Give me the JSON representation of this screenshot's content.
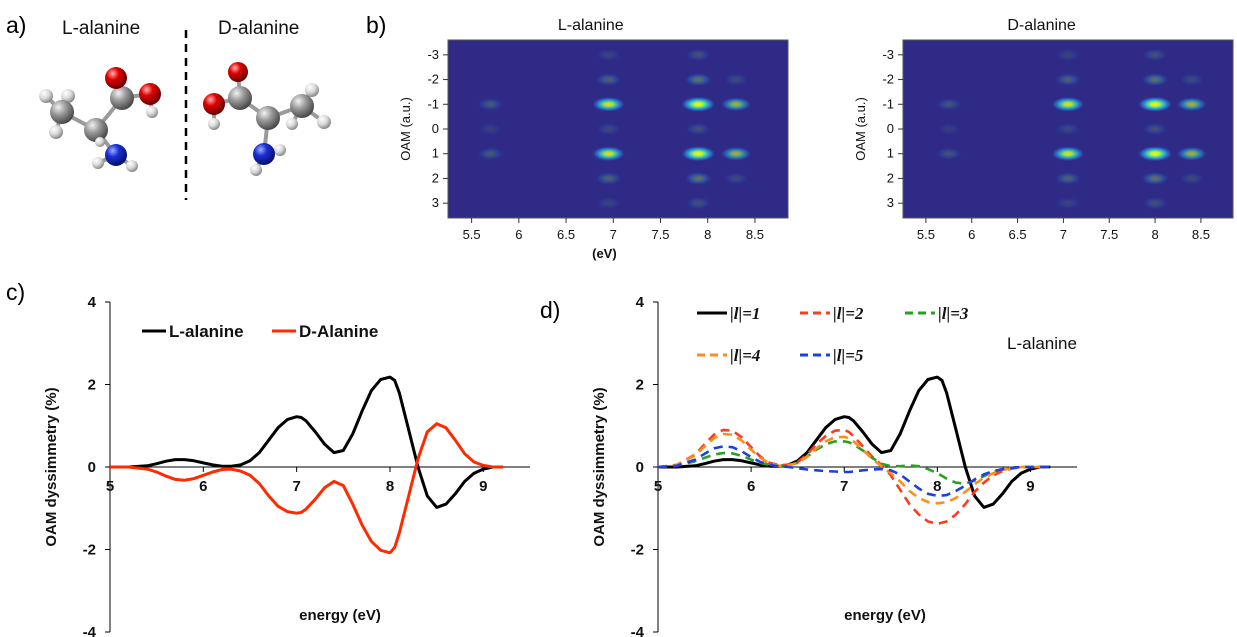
{
  "panel_labels": {
    "a": "a)",
    "b": "b)",
    "c": "c)",
    "d": "d)"
  },
  "molecules": {
    "left_title": "L-alanine",
    "right_title": "D-alanine"
  },
  "colors": {
    "carbon": "#8a8a8a",
    "oxygen": "#e00000",
    "nitrogen": "#1a2fd6",
    "hydrogen": "#e6e6e6",
    "heatmap_bg": "#2e2a86",
    "l_alanine": "#000000",
    "d_alanine": "#ff2a00",
    "l2": "#ff3b1f",
    "l3": "#2aa020",
    "l4": "#ff8c1a",
    "l5": "#1f3fe6"
  },
  "chart_data": [
    {
      "type": "heatmap",
      "title": "L-alanine",
      "xlabel": "(eV)",
      "ylabel": "OAM (a.u.)",
      "x_ticks": [
        "5.5",
        "6",
        "6.5",
        "7",
        "7.5",
        "8",
        "8.5"
      ],
      "x_tick_values": [
        5.5,
        6,
        6.5,
        7,
        7.5,
        8,
        8.5
      ],
      "y_ticks": [
        "-3",
        "-2",
        "-1",
        "0",
        "1",
        "2",
        "3"
      ],
      "y_tick_values": [
        -3,
        -2,
        -1,
        0,
        1,
        2,
        3
      ],
      "xlim": [
        5.25,
        8.85
      ],
      "ylim": [
        -3.6,
        3.6
      ],
      "blobs": [
        {
          "x": 5.7,
          "y": -1,
          "i": 0.18
        },
        {
          "x": 5.7,
          "y": 1,
          "i": 0.18
        },
        {
          "x": 5.7,
          "y": 0,
          "i": 0.08
        },
        {
          "x": 6.95,
          "y": -1,
          "i": 0.85
        },
        {
          "x": 6.95,
          "y": 1,
          "i": 0.85
        },
        {
          "x": 6.95,
          "y": -2,
          "i": 0.22
        },
        {
          "x": 6.95,
          "y": 2,
          "i": 0.22
        },
        {
          "x": 6.95,
          "y": -3,
          "i": 0.1
        },
        {
          "x": 6.95,
          "y": 3,
          "i": 0.1
        },
        {
          "x": 6.95,
          "y": 0,
          "i": 0.12
        },
        {
          "x": 7.9,
          "y": -1,
          "i": 1.0
        },
        {
          "x": 7.9,
          "y": 1,
          "i": 1.0
        },
        {
          "x": 8.3,
          "y": -1,
          "i": 0.6
        },
        {
          "x": 8.3,
          "y": 1,
          "i": 0.6
        },
        {
          "x": 7.9,
          "y": -2,
          "i": 0.3
        },
        {
          "x": 7.9,
          "y": 2,
          "i": 0.3
        },
        {
          "x": 7.9,
          "y": -3,
          "i": 0.15
        },
        {
          "x": 7.9,
          "y": 3,
          "i": 0.15
        },
        {
          "x": 7.9,
          "y": 0,
          "i": 0.15
        },
        {
          "x": 8.3,
          "y": -2,
          "i": 0.12
        },
        {
          "x": 8.3,
          "y": 2,
          "i": 0.12
        }
      ]
    },
    {
      "type": "heatmap",
      "title": "D-alanine",
      "xlabel": "",
      "ylabel": "OAM (a.u.)",
      "x_ticks": [
        "5.5",
        "6",
        "6.5",
        "7",
        "7.5",
        "8",
        "8.5"
      ],
      "x_tick_values": [
        5.5,
        6,
        6.5,
        7,
        7.5,
        8,
        8.5
      ],
      "y_ticks": [
        "-3",
        "-2",
        "-1",
        "0",
        "1",
        "2",
        "3"
      ],
      "y_tick_values": [
        -3,
        -2,
        -1,
        0,
        1,
        2,
        3
      ],
      "xlim": [
        5.25,
        8.85
      ],
      "ylim": [
        -3.6,
        3.6
      ],
      "blobs": [
        {
          "x": 5.75,
          "y": -1,
          "i": 0.16
        },
        {
          "x": 5.75,
          "y": 1,
          "i": 0.16
        },
        {
          "x": 5.75,
          "y": 0,
          "i": 0.07
        },
        {
          "x": 7.05,
          "y": -1,
          "i": 0.85
        },
        {
          "x": 7.05,
          "y": 1,
          "i": 0.85
        },
        {
          "x": 7.05,
          "y": -2,
          "i": 0.22
        },
        {
          "x": 7.05,
          "y": 2,
          "i": 0.22
        },
        {
          "x": 7.05,
          "y": -3,
          "i": 0.1
        },
        {
          "x": 7.05,
          "y": 3,
          "i": 0.1
        },
        {
          "x": 7.05,
          "y": 0,
          "i": 0.12
        },
        {
          "x": 8.0,
          "y": -1,
          "i": 1.0
        },
        {
          "x": 8.0,
          "y": 1,
          "i": 1.0
        },
        {
          "x": 8.4,
          "y": -1,
          "i": 0.6
        },
        {
          "x": 8.4,
          "y": 1,
          "i": 0.6
        },
        {
          "x": 8.0,
          "y": -2,
          "i": 0.3
        },
        {
          "x": 8.0,
          "y": 2,
          "i": 0.3
        },
        {
          "x": 8.0,
          "y": -3,
          "i": 0.15
        },
        {
          "x": 8.0,
          "y": 3,
          "i": 0.15
        },
        {
          "x": 8.0,
          "y": 0,
          "i": 0.15
        },
        {
          "x": 8.4,
          "y": -2,
          "i": 0.12
        },
        {
          "x": 8.4,
          "y": 2,
          "i": 0.12
        }
      ]
    },
    {
      "type": "line",
      "title": "",
      "xlabel": "energy (eV)",
      "ylabel": "OAM  dyssimmetry (%)",
      "xlim": [
        5,
        9.5
      ],
      "ylim": [
        -4,
        4
      ],
      "x_ticks": [
        "5",
        "6",
        "7",
        "8",
        "9"
      ],
      "x_tick_values": [
        5,
        6,
        7,
        8,
        9
      ],
      "y_ticks": [
        "4",
        "2",
        "0",
        "-2",
        "-4"
      ],
      "y_tick_values": [
        4,
        2,
        0,
        -2,
        -4
      ],
      "legend": {
        "position": "top-left"
      },
      "series": [
        {
          "name": "L-alanine",
          "color": "#000000",
          "dashed": false,
          "x": [
            5,
            5.2,
            5.4,
            5.5,
            5.6,
            5.7,
            5.8,
            5.9,
            6.0,
            6.1,
            6.2,
            6.3,
            6.4,
            6.5,
            6.6,
            6.7,
            6.8,
            6.9,
            7.0,
            7.05,
            7.1,
            7.2,
            7.3,
            7.4,
            7.5,
            7.6,
            7.7,
            7.8,
            7.9,
            8.0,
            8.05,
            8.1,
            8.2,
            8.3,
            8.4,
            8.5,
            8.6,
            8.7,
            8.8,
            8.9,
            9.0,
            9.1,
            9.2
          ],
          "y": [
            0,
            0,
            0.03,
            0.08,
            0.14,
            0.18,
            0.18,
            0.15,
            0.1,
            0.05,
            0.02,
            0.02,
            0.05,
            0.15,
            0.35,
            0.65,
            0.95,
            1.15,
            1.22,
            1.2,
            1.12,
            0.85,
            0.55,
            0.35,
            0.4,
            0.8,
            1.35,
            1.85,
            2.12,
            2.18,
            2.1,
            1.8,
            0.9,
            0,
            -0.7,
            -0.98,
            -0.9,
            -0.65,
            -0.35,
            -0.15,
            -0.05,
            0,
            0
          ]
        },
        {
          "name": "D-Alanine",
          "color": "#ff2a00",
          "dashed": false,
          "x": [
            5,
            5.2,
            5.4,
            5.5,
            5.6,
            5.7,
            5.8,
            5.9,
            6.0,
            6.1,
            6.2,
            6.3,
            6.4,
            6.5,
            6.6,
            6.7,
            6.8,
            6.9,
            7.0,
            7.05,
            7.1,
            7.2,
            7.3,
            7.4,
            7.5,
            7.6,
            7.7,
            7.8,
            7.9,
            8.0,
            8.05,
            8.1,
            8.2,
            8.3,
            8.4,
            8.5,
            8.6,
            8.7,
            8.8,
            8.9,
            9.0,
            9.1,
            9.2
          ],
          "y": [
            0,
            0,
            -0.05,
            -0.12,
            -0.22,
            -0.3,
            -0.32,
            -0.28,
            -0.2,
            -0.12,
            -0.06,
            -0.05,
            -0.1,
            -0.2,
            -0.4,
            -0.7,
            -0.95,
            -1.08,
            -1.12,
            -1.1,
            -1.02,
            -0.78,
            -0.5,
            -0.35,
            -0.45,
            -0.9,
            -1.4,
            -1.8,
            -2.02,
            -2.08,
            -1.95,
            -1.6,
            -0.7,
            0.2,
            0.85,
            1.05,
            0.95,
            0.65,
            0.32,
            0.12,
            0.04,
            0,
            0
          ]
        }
      ]
    },
    {
      "type": "line",
      "title": "",
      "annotation": "L-alanine",
      "xlabel": "energy (eV)",
      "ylabel": "OAM  dyssimmetry (%)",
      "xlim": [
        5,
        9.5
      ],
      "ylim": [
        -4,
        4
      ],
      "x_ticks": [
        "5",
        "6",
        "7",
        "8",
        "9"
      ],
      "x_tick_values": [
        5,
        6,
        7,
        8,
        9
      ],
      "y_ticks": [
        "4",
        "2",
        "0",
        "-2",
        "-4"
      ],
      "y_tick_values": [
        4,
        2,
        0,
        -2,
        -4
      ],
      "legend": {
        "position": "top-left"
      },
      "series": [
        {
          "name": "|l|=1",
          "color": "#000000",
          "dashed": false,
          "x": [
            5,
            5.2,
            5.4,
            5.5,
            5.6,
            5.7,
            5.8,
            5.9,
            6.0,
            6.1,
            6.2,
            6.3,
            6.4,
            6.5,
            6.6,
            6.7,
            6.8,
            6.9,
            7.0,
            7.05,
            7.1,
            7.2,
            7.3,
            7.4,
            7.5,
            7.6,
            7.7,
            7.8,
            7.9,
            8.0,
            8.05,
            8.1,
            8.2,
            8.3,
            8.4,
            8.5,
            8.6,
            8.7,
            8.8,
            8.9,
            9.0,
            9.1,
            9.2
          ],
          "y": [
            0,
            0,
            0.03,
            0.08,
            0.14,
            0.18,
            0.18,
            0.15,
            0.1,
            0.05,
            0.02,
            0.02,
            0.05,
            0.15,
            0.35,
            0.65,
            0.95,
            1.15,
            1.22,
            1.2,
            1.12,
            0.85,
            0.55,
            0.35,
            0.4,
            0.8,
            1.35,
            1.85,
            2.12,
            2.18,
            2.1,
            1.8,
            0.9,
            0,
            -0.7,
            -0.98,
            -0.9,
            -0.65,
            -0.35,
            -0.15,
            -0.05,
            0,
            0
          ]
        },
        {
          "name": "|l|=2",
          "color": "#ff3b1f",
          "dashed": true,
          "x": [
            5,
            5.2,
            5.4,
            5.5,
            5.6,
            5.7,
            5.8,
            5.9,
            6.0,
            6.1,
            6.2,
            6.3,
            6.4,
            6.5,
            6.6,
            6.7,
            6.8,
            6.9,
            7.0,
            7.05,
            7.1,
            7.2,
            7.3,
            7.4,
            7.5,
            7.6,
            7.7,
            7.8,
            7.9,
            8.0,
            8.1,
            8.2,
            8.3,
            8.4,
            8.5,
            8.6,
            8.7,
            8.8,
            8.9,
            9.0,
            9.1,
            9.2
          ],
          "y": [
            0,
            0.05,
            0.3,
            0.55,
            0.78,
            0.9,
            0.88,
            0.72,
            0.48,
            0.25,
            0.1,
            0.05,
            0.05,
            0.12,
            0.3,
            0.55,
            0.75,
            0.88,
            0.9,
            0.85,
            0.75,
            0.5,
            0.25,
            0.05,
            -0.2,
            -0.55,
            -0.9,
            -1.15,
            -1.32,
            -1.38,
            -1.32,
            -1.15,
            -0.9,
            -0.6,
            -0.38,
            -0.2,
            -0.1,
            -0.04,
            0,
            0,
            0,
            0
          ]
        },
        {
          "name": "|l|=3",
          "color": "#2aa020",
          "dashed": true,
          "x": [
            5,
            5.2,
            5.4,
            5.5,
            5.6,
            5.7,
            5.8,
            5.9,
            6.0,
            6.1,
            6.2,
            6.3,
            6.4,
            6.5,
            6.6,
            6.7,
            6.8,
            6.9,
            7.0,
            7.05,
            7.1,
            7.2,
            7.3,
            7.4,
            7.5,
            7.6,
            7.7,
            7.8,
            7.9,
            8.0,
            8.1,
            8.2,
            8.3,
            8.4,
            8.5,
            8.6,
            8.7,
            8.8,
            8.9,
            9.0,
            9.1,
            9.2
          ],
          "y": [
            0,
            0.03,
            0.14,
            0.22,
            0.3,
            0.34,
            0.33,
            0.27,
            0.18,
            0.1,
            0.05,
            0.03,
            0.04,
            0.1,
            0.25,
            0.42,
            0.55,
            0.62,
            0.62,
            0.6,
            0.55,
            0.4,
            0.22,
            0.08,
            0.02,
            0.02,
            0.04,
            0.02,
            -0.05,
            -0.15,
            -0.28,
            -0.38,
            -0.4,
            -0.33,
            -0.22,
            -0.12,
            -0.05,
            -0.02,
            0,
            0,
            0,
            0
          ]
        },
        {
          "name": "|l|=4",
          "color": "#ff8c1a",
          "dashed": true,
          "x": [
            5,
            5.2,
            5.4,
            5.5,
            5.6,
            5.7,
            5.8,
            5.9,
            6.0,
            6.1,
            6.2,
            6.3,
            6.4,
            6.5,
            6.6,
            6.7,
            6.8,
            6.9,
            7.0,
            7.05,
            7.1,
            7.2,
            7.3,
            7.4,
            7.5,
            7.6,
            7.7,
            7.8,
            7.9,
            8.0,
            8.1,
            8.2,
            8.3,
            8.4,
            8.5,
            8.6,
            8.7,
            8.8,
            8.9,
            9.0,
            9.1,
            9.2
          ],
          "y": [
            0,
            0.05,
            0.28,
            0.5,
            0.7,
            0.8,
            0.78,
            0.64,
            0.42,
            0.22,
            0.08,
            0.03,
            0.04,
            0.1,
            0.25,
            0.45,
            0.62,
            0.72,
            0.73,
            0.7,
            0.62,
            0.42,
            0.2,
            0.02,
            -0.15,
            -0.35,
            -0.58,
            -0.75,
            -0.85,
            -0.88,
            -0.85,
            -0.75,
            -0.6,
            -0.42,
            -0.26,
            -0.15,
            -0.07,
            -0.03,
            0,
            0,
            0,
            0
          ]
        },
        {
          "name": "|l|=5",
          "color": "#1f3fe6",
          "dashed": true,
          "x": [
            5,
            5.2,
            5.4,
            5.5,
            5.6,
            5.7,
            5.8,
            5.9,
            6.0,
            6.1,
            6.2,
            6.3,
            6.4,
            6.5,
            6.6,
            6.7,
            6.8,
            6.9,
            7.0,
            7.05,
            7.1,
            7.2,
            7.3,
            7.4,
            7.5,
            7.6,
            7.7,
            7.8,
            7.9,
            8.0,
            8.1,
            8.2,
            8.3,
            8.4,
            8.5,
            8.6,
            8.7,
            8.8,
            8.9,
            9.0,
            9.1,
            9.2
          ],
          "y": [
            0,
            0.03,
            0.18,
            0.32,
            0.45,
            0.5,
            0.48,
            0.38,
            0.24,
            0.12,
            0.05,
            0.02,
            0,
            -0.03,
            -0.06,
            -0.08,
            -0.1,
            -0.11,
            -0.12,
            -0.12,
            -0.11,
            -0.08,
            -0.06,
            -0.05,
            -0.08,
            -0.18,
            -0.35,
            -0.52,
            -0.65,
            -0.7,
            -0.68,
            -0.58,
            -0.45,
            -0.3,
            -0.18,
            -0.1,
            -0.05,
            -0.02,
            0,
            0,
            0,
            0
          ]
        }
      ]
    }
  ]
}
